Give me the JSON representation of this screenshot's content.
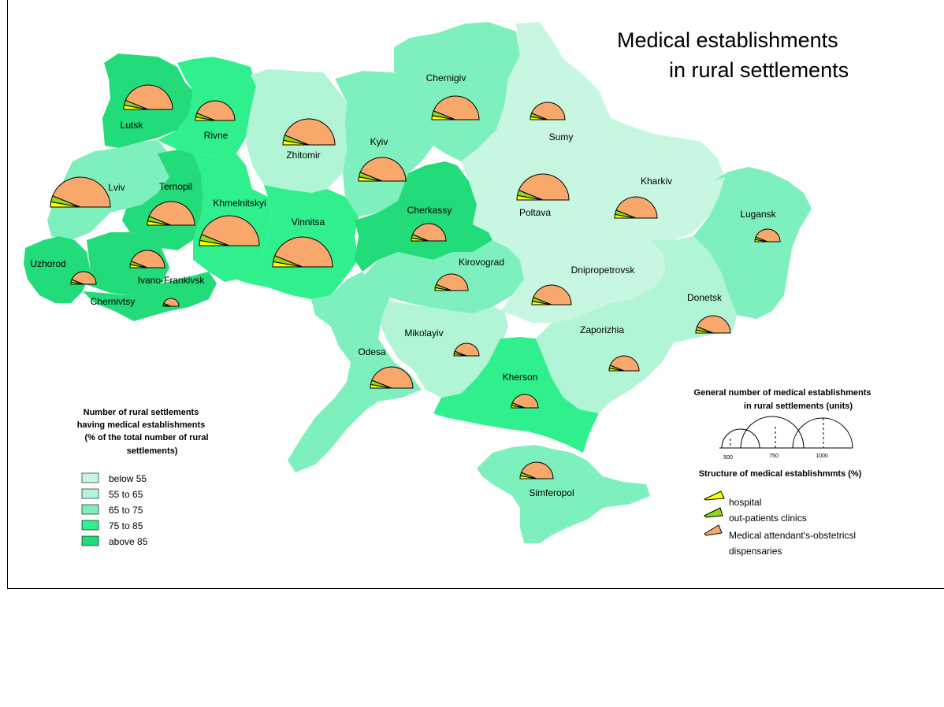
{
  "title_line1": "Medical establishments",
  "title_line2": "in rural settlements",
  "colors": {
    "below_55": "#c8f7e1",
    "55_65": "#b1f5d6",
    "65_75": "#7df0bd",
    "75_85": "#2ff08d",
    "above_85": "#22db79",
    "hospital": "#ffff00",
    "outpatient": "#8cd91a",
    "fap": "#f9a86c"
  },
  "legend_left": {
    "title_lines": [
      "Number of rural settlements",
      "having medical establishments",
      "(% of the total number of rural",
      "settlements)"
    ],
    "classes": [
      {
        "key": "below_55",
        "label": "below 55"
      },
      {
        "key": "55_65",
        "label": "55 to  65"
      },
      {
        "key": "65_75",
        "label": "65 to 75"
      },
      {
        "key": "75_85",
        "label": "75 to  85"
      },
      {
        "key": "above_85",
        "label": "above 85"
      }
    ]
  },
  "legend_right": {
    "size_title_lines": [
      "General number of medical establishments",
      "in rural settlements (units)"
    ],
    "size_ticks": [
      "500",
      "750",
      "1000"
    ],
    "structure_title": "Structure of medical establishmmts (%)",
    "structure_items": [
      {
        "key": "hospital",
        "label": "hospital"
      },
      {
        "key": "outpatient",
        "label": "out-patients clinics"
      },
      {
        "key": "fap",
        "label": "Medical attendant's-obstetricsl"
      }
    ],
    "structure_item3_line2": "dispensaries"
  },
  "regions": [
    {
      "name": "Lutsk",
      "class": "above_85"
    },
    {
      "name": "Rivne",
      "class": "75_85"
    },
    {
      "name": "Zhitomir",
      "class": "55_65"
    },
    {
      "name": "Kyiv",
      "class": "65_75"
    },
    {
      "name": "Chernigiv",
      "class": "65_75"
    },
    {
      "name": "Sumy",
      "class": "below_55"
    },
    {
      "name": "Lviv",
      "class": "65_75"
    },
    {
      "name": "Ternopil",
      "class": "above_85"
    },
    {
      "name": "Khmelnitskyi",
      "class": "75_85"
    },
    {
      "name": "Vinnitsa",
      "class": "75_85"
    },
    {
      "name": "Cherkassy",
      "class": "above_85"
    },
    {
      "name": "Poltava",
      "class": "below_55"
    },
    {
      "name": "Kharkiv",
      "class": "below_55"
    },
    {
      "name": "Lugansk",
      "class": "65_75"
    },
    {
      "name": "Uzhorod",
      "class": "above_85"
    },
    {
      "name": "Ivano-Frankivsk",
      "class": "above_85"
    },
    {
      "name": "Chernivtsy",
      "class": "above_85"
    },
    {
      "name": "Kirovograd",
      "class": "65_75"
    },
    {
      "name": "Dnipropetrovsk",
      "class": "below_55"
    },
    {
      "name": "Donetsk",
      "class": "55_65"
    },
    {
      "name": "Mikolayiv",
      "class": "55_65"
    },
    {
      "name": "Odesa",
      "class": "65_75"
    },
    {
      "name": "Zaporizhia",
      "class": "55_65"
    },
    {
      "name": "Kherson",
      "class": "75_85"
    },
    {
      "name": "Simferopol",
      "class": "65_75"
    }
  ]
}
